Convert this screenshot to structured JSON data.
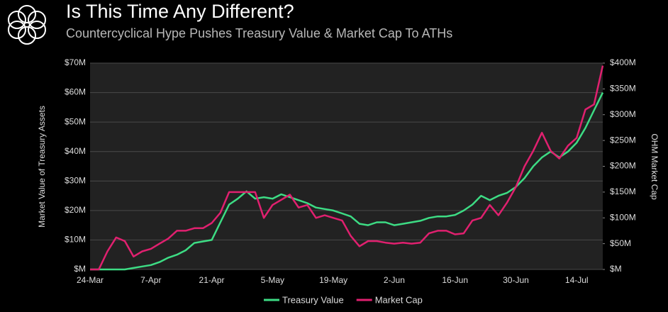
{
  "chart_data": {
    "type": "line",
    "title": "Is This Time Any Different?",
    "subtitle": "Countercyclical Hype Pushes Treasury Value & Market Cap To ATHs",
    "y_label": "Market Value of Treasury Assets",
    "y2_label": "OHM Market Cap",
    "categories": [
      "24-Mar",
      null,
      null,
      null,
      null,
      null,
      null,
      "7-Apr",
      null,
      null,
      null,
      null,
      null,
      null,
      "21-Apr",
      null,
      null,
      null,
      null,
      null,
      null,
      "5-May",
      null,
      null,
      null,
      null,
      null,
      null,
      "19-May",
      null,
      null,
      null,
      null,
      null,
      null,
      "2-Jun",
      null,
      null,
      null,
      null,
      null,
      null,
      "16-Jun",
      null,
      null,
      null,
      null,
      null,
      null,
      "30-Jun",
      null,
      null,
      null,
      null,
      null,
      null,
      "14-Jul",
      null,
      null,
      null
    ],
    "series": [
      {
        "name": "Treasury Value",
        "color": "#3ddc84",
        "values": [
          0,
          0,
          0,
          0,
          0,
          0.5,
          1,
          1.5,
          2.5,
          4,
          5,
          6.5,
          9,
          9.5,
          10,
          16,
          22,
          24,
          26.5,
          24,
          24.5,
          24,
          25.5,
          24.5,
          23.5,
          22.5,
          21,
          20.5,
          20,
          19,
          18,
          15.5,
          15,
          16,
          16,
          15,
          15.5,
          16,
          16.5,
          17.5,
          18,
          18,
          18.5,
          20,
          22,
          25,
          23.5,
          25,
          26,
          28,
          31,
          35,
          38,
          40,
          38,
          40,
          43,
          48,
          54,
          60
        ]
      },
      {
        "name": "Market Cap",
        "color": "#e0206f",
        "axis": "y2",
        "values": [
          0,
          0,
          35,
          62,
          55,
          25,
          35,
          40,
          50,
          60,
          75,
          75,
          80,
          80,
          90,
          110,
          150,
          150,
          150,
          150,
          100,
          125,
          135,
          145,
          120,
          125,
          100,
          105,
          100,
          95,
          65,
          45,
          55,
          55,
          52,
          50,
          52,
          50,
          52,
          70,
          75,
          75,
          68,
          70,
          95,
          100,
          125,
          105,
          130,
          160,
          200,
          230,
          265,
          230,
          215,
          240,
          255,
          310,
          320,
          395
        ]
      }
    ],
    "ylim": [
      0,
      70
    ],
    "yticks": [
      {
        "value": 0,
        "label": "$M"
      },
      {
        "value": 10,
        "label": "$10M"
      },
      {
        "value": 20,
        "label": "$20M"
      },
      {
        "value": 30,
        "label": "$30M"
      },
      {
        "value": 40,
        "label": "$40M"
      },
      {
        "value": 50,
        "label": "$50M"
      },
      {
        "value": 60,
        "label": "$60M"
      },
      {
        "value": 70,
        "label": "$70M"
      }
    ],
    "y2lim": [
      0,
      400
    ],
    "y2ticks": [
      {
        "value": 0,
        "label": "$M"
      },
      {
        "value": 50,
        "label": "$50M"
      },
      {
        "value": 100,
        "label": "$100M"
      },
      {
        "value": 150,
        "label": "$150M"
      },
      {
        "value": 200,
        "label": "$200M"
      },
      {
        "value": 250,
        "label": "$250M"
      },
      {
        "value": 300,
        "label": "$300M"
      },
      {
        "value": 350,
        "label": "$350M"
      },
      {
        "value": 400,
        "label": "$400M"
      }
    ],
    "grid": true,
    "legend": "bottom"
  }
}
